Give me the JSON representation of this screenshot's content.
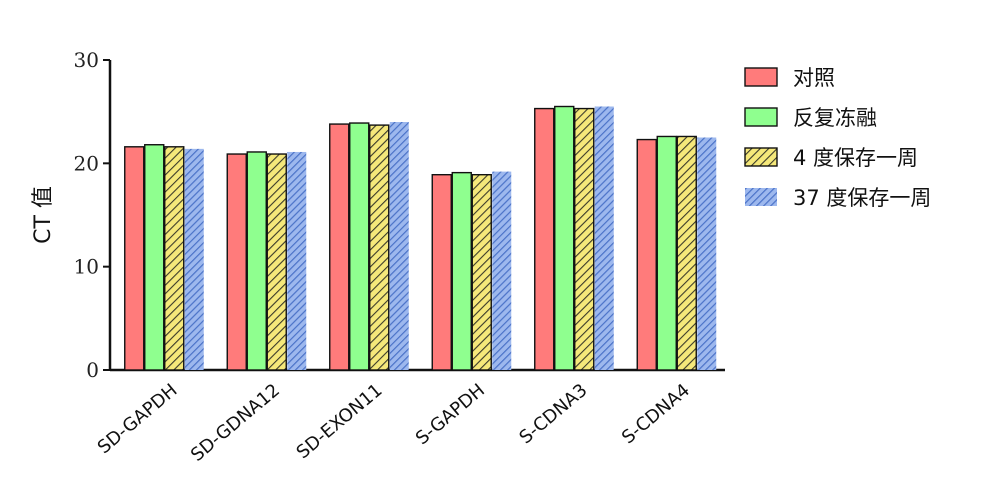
{
  "chart_data": {
    "type": "bar",
    "title": "",
    "xlabel": "",
    "ylabel": "CT 值",
    "ylim": [
      0,
      30
    ],
    "yticks": [
      0,
      10,
      20,
      30
    ],
    "legend_position": "top-right",
    "grid": false,
    "categories": [
      "SD-GAPDH",
      "SD-GDNA12",
      "SD-EXON11",
      "S-GAPDH",
      "S-CDNA3",
      "S-CDNA4"
    ],
    "series": [
      {
        "name": "对照",
        "values": [
          21.6,
          20.9,
          23.8,
          18.9,
          25.3,
          22.3
        ],
        "color": "#ff7b7b",
        "pattern": "solid"
      },
      {
        "name": "反复冻融",
        "values": [
          21.8,
          21.1,
          23.9,
          19.1,
          25.5,
          22.6
        ],
        "color": "#8fff8f",
        "pattern": "solid"
      },
      {
        "name": "4 度保存一周",
        "values": [
          21.6,
          20.9,
          23.7,
          18.9,
          25.3,
          22.6
        ],
        "color": "#f5e87a",
        "pattern": "hatch-dark"
      },
      {
        "name": "37 度保存一周",
        "values": [
          21.4,
          21.1,
          24.0,
          19.2,
          25.5,
          22.5
        ],
        "color": "#6f94e0",
        "pattern": "hatch-blue"
      }
    ]
  }
}
